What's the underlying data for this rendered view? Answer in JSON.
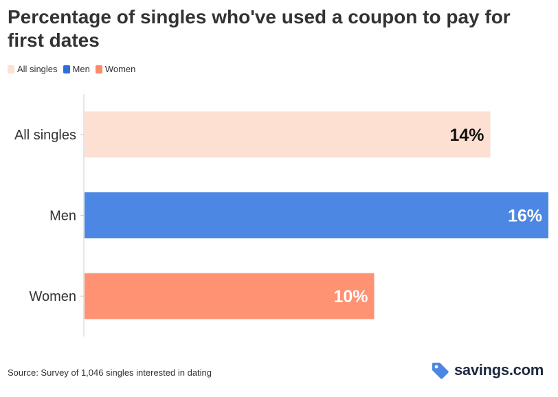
{
  "chart_data": {
    "type": "bar",
    "orientation": "horizontal",
    "title": "Percentage of singles who've used a coupon to pay for first dates",
    "categories": [
      "All singles",
      "Men",
      "Women"
    ],
    "values": [
      14,
      16,
      10
    ],
    "value_labels": [
      "14%",
      "16%",
      "10%"
    ],
    "colors": [
      "#fde0d2",
      "#4c87e3",
      "#ff9273"
    ],
    "label_colors": [
      "#111111",
      "#ffffff",
      "#ffffff"
    ],
    "legend": [
      {
        "label": "All singles",
        "color": "#fde0d2"
      },
      {
        "label": "Men",
        "color": "#2f6fdb"
      },
      {
        "label": "Women",
        "color": "#ff8a66"
      }
    ],
    "legend_position": "top-left",
    "xlim": [
      0,
      16
    ],
    "grid": false
  },
  "footer": {
    "source": "Source: Survey of 1,046 singles interested in dating",
    "brand": "savings.com"
  }
}
